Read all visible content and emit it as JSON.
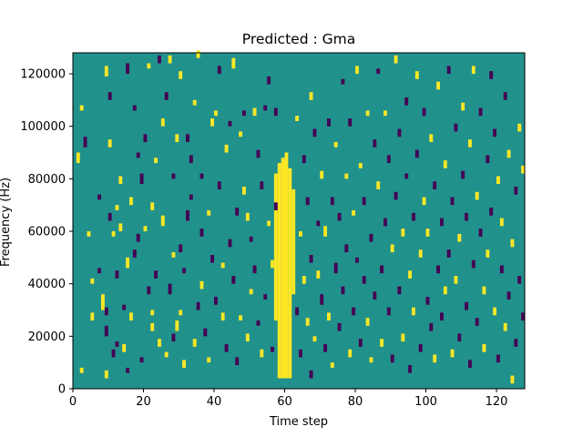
{
  "chart_data": {
    "type": "heatmap",
    "title": "Predicted : Gma",
    "xlabel": "Time step",
    "ylabel": "Frequency (Hz)",
    "xlim": [
      0,
      128
    ],
    "ylim": [
      0,
      128000
    ],
    "x_ticks": [
      0,
      20,
      40,
      60,
      80,
      100,
      120
    ],
    "y_ticks": [
      0,
      20000,
      40000,
      60000,
      80000,
      100000,
      120000
    ],
    "x_tick_labels": [
      "0",
      "20",
      "40",
      "60",
      "80",
      "100",
      "120"
    ],
    "y_tick_labels": [
      "0",
      "20000",
      "40000",
      "60000",
      "80000",
      "100000",
      "120000"
    ],
    "n_time_steps": 128,
    "n_freq_bins": 128,
    "bin_hz": 1000,
    "values_legend": {
      "low": -1,
      "neutral": 0,
      "high": 1
    },
    "colors": {
      "low": "#440154",
      "neutral": "#21918c",
      "high": "#fde725"
    },
    "band": {
      "value": 1,
      "cols": [
        {
          "t": 57,
          "f0": 26000,
          "f1": 82000
        },
        {
          "t": 58,
          "f0": 4000,
          "f1": 86000
        },
        {
          "t": 59,
          "f0": 4000,
          "f1": 88000
        },
        {
          "t": 60,
          "f0": 4000,
          "f1": 90000
        },
        {
          "t": 61,
          "f0": 4000,
          "f1": 84000
        },
        {
          "t": 62,
          "f0": 36000,
          "f1": 76000
        }
      ]
    },
    "cells": [
      [
        2,
        6000,
        1,
        2000
      ],
      [
        2,
        106000,
        1,
        2000
      ],
      [
        1,
        86000,
        1,
        4000
      ],
      [
        3,
        92000,
        -1,
        4000
      ],
      [
        4,
        58000,
        1,
        2000
      ],
      [
        5,
        26000,
        1,
        3000
      ],
      [
        5,
        40000,
        1,
        2000
      ],
      [
        7,
        44000,
        -1,
        2000
      ],
      [
        7,
        72000,
        -1,
        2000
      ],
      [
        8,
        30000,
        1,
        6000
      ],
      [
        9,
        4000,
        1,
        3000
      ],
      [
        9,
        119000,
        1,
        4000
      ],
      [
        9,
        28000,
        -1,
        3000
      ],
      [
        9,
        20000,
        -1,
        4000
      ],
      [
        10,
        110000,
        -1,
        3000
      ],
      [
        10,
        92000,
        1,
        3000
      ],
      [
        10,
        64000,
        -1,
        3000
      ],
      [
        11,
        12000,
        -1,
        3000
      ],
      [
        11,
        58000,
        1,
        2000
      ],
      [
        12,
        16000,
        -1,
        2000
      ],
      [
        12,
        42000,
        -1,
        3000
      ],
      [
        12,
        68000,
        1,
        2000
      ],
      [
        13,
        78000,
        1,
        3000
      ],
      [
        13,
        60000,
        1,
        3000
      ],
      [
        14,
        30000,
        -1,
        2000
      ],
      [
        14,
        14000,
        1,
        3000
      ],
      [
        15,
        6000,
        -1,
        2000
      ],
      [
        15,
        120000,
        -1,
        4000
      ],
      [
        15,
        46000,
        1,
        4000
      ],
      [
        16,
        26000,
        1,
        3000
      ],
      [
        16,
        70000,
        1,
        3000
      ],
      [
        17,
        106000,
        -1,
        2000
      ],
      [
        17,
        50000,
        -1,
        3000
      ],
      [
        18,
        88000,
        -1,
        2000
      ],
      [
        18,
        56000,
        -1,
        3000
      ],
      [
        19,
        10000,
        -1,
        2000
      ],
      [
        19,
        78000,
        -1,
        4000
      ],
      [
        20,
        94000,
        -1,
        3000
      ],
      [
        20,
        60000,
        1,
        2000
      ],
      [
        21,
        36000,
        -1,
        3000
      ],
      [
        21,
        122000,
        1,
        2000
      ],
      [
        22,
        22000,
        1,
        3000
      ],
      [
        22,
        68000,
        1,
        3000
      ],
      [
        22,
        28000,
        1,
        2000
      ],
      [
        23,
        86000,
        1,
        2000
      ],
      [
        23,
        42000,
        -1,
        3000
      ],
      [
        24,
        16000,
        1,
        3000
      ],
      [
        24,
        124000,
        -1,
        3000
      ],
      [
        25,
        62000,
        1,
        4000
      ],
      [
        25,
        100000,
        1,
        3000
      ],
      [
        26,
        110000,
        -1,
        3000
      ],
      [
        26,
        12000,
        1,
        2000
      ],
      [
        27,
        36000,
        -1,
        4000
      ],
      [
        27,
        124000,
        1,
        3000
      ],
      [
        28,
        18000,
        -1,
        3000
      ],
      [
        28,
        50000,
        1,
        2000
      ],
      [
        28,
        80000,
        -1,
        2000
      ],
      [
        29,
        94000,
        1,
        3000
      ],
      [
        29,
        22000,
        1,
        4000
      ],
      [
        30,
        118000,
        1,
        3000
      ],
      [
        30,
        52000,
        -1,
        3000
      ],
      [
        30,
        28000,
        1,
        2000
      ],
      [
        31,
        44000,
        -1,
        2000
      ],
      [
        31,
        8000,
        1,
        3000
      ],
      [
        32,
        64000,
        -1,
        4000
      ],
      [
        32,
        94000,
        -1,
        3000
      ],
      [
        33,
        86000,
        -1,
        3000
      ],
      [
        33,
        72000,
        -1,
        2000
      ],
      [
        34,
        108000,
        1,
        2000
      ],
      [
        34,
        16000,
        1,
        3000
      ],
      [
        35,
        30000,
        -1,
        3000
      ],
      [
        35,
        126000,
        1,
        3000
      ],
      [
        36,
        38000,
        1,
        3000
      ],
      [
        36,
        80000,
        -1,
        2000
      ],
      [
        36,
        58000,
        -1,
        3000
      ],
      [
        37,
        20000,
        -1,
        3000
      ],
      [
        38,
        10000,
        1,
        2000
      ],
      [
        38,
        66000,
        1,
        2000
      ],
      [
        39,
        100000,
        1,
        3000
      ],
      [
        39,
        48000,
        -1,
        3000
      ],
      [
        40,
        104000,
        1,
        2000
      ],
      [
        40,
        32000,
        -1,
        3000
      ],
      [
        41,
        120000,
        -1,
        3000
      ],
      [
        41,
        76000,
        -1,
        3000
      ],
      [
        42,
        26000,
        1,
        3000
      ],
      [
        42,
        46000,
        1,
        2000
      ],
      [
        43,
        14000,
        -1,
        3000
      ],
      [
        43,
        90000,
        1,
        3000
      ],
      [
        44,
        54000,
        -1,
        3000
      ],
      [
        44,
        100000,
        -1,
        2000
      ],
      [
        45,
        40000,
        -1,
        3000
      ],
      [
        45,
        122000,
        1,
        4000
      ],
      [
        46,
        66000,
        -1,
        3000
      ],
      [
        46,
        9000,
        -1,
        3000
      ],
      [
        47,
        96000,
        1,
        2000
      ],
      [
        47,
        26000,
        1,
        2000
      ],
      [
        48,
        74000,
        1,
        3000
      ],
      [
        48,
        104000,
        -1,
        2000
      ],
      [
        49,
        64000,
        1,
        3000
      ],
      [
        49,
        18000,
        1,
        3000
      ],
      [
        50,
        56000,
        -1,
        2000
      ],
      [
        50,
        36000,
        1,
        2000
      ],
      [
        51,
        104000,
        1,
        3000
      ],
      [
        51,
        44000,
        -1,
        3000
      ],
      [
        52,
        88000,
        -1,
        3000
      ],
      [
        52,
        24000,
        -1,
        2000
      ],
      [
        53,
        76000,
        -1,
        3000
      ],
      [
        53,
        12000,
        1,
        3000
      ],
      [
        54,
        106000,
        -1,
        2000
      ],
      [
        54,
        34000,
        -1,
        2000
      ],
      [
        55,
        62000,
        1,
        2000
      ],
      [
        55,
        116000,
        -1,
        3000
      ],
      [
        56,
        46000,
        1,
        3000
      ],
      [
        56,
        14000,
        -1,
        2000
      ],
      [
        57,
        68000,
        -1,
        3000
      ],
      [
        57,
        104000,
        -1,
        3000
      ],
      [
        63,
        28000,
        -1,
        3000
      ],
      [
        63,
        102000,
        1,
        2000
      ],
      [
        64,
        12000,
        -1,
        3000
      ],
      [
        64,
        58000,
        1,
        2000
      ],
      [
        65,
        40000,
        1,
        3000
      ],
      [
        65,
        86000,
        -1,
        3000
      ],
      [
        66,
        24000,
        1,
        3000
      ],
      [
        66,
        70000,
        -1,
        3000
      ],
      [
        67,
        4000,
        -1,
        3000
      ],
      [
        67,
        48000,
        -1,
        3000
      ],
      [
        67,
        110000,
        1,
        3000
      ],
      [
        68,
        18000,
        1,
        2000
      ],
      [
        68,
        96000,
        -1,
        3000
      ],
      [
        69,
        62000,
        -1,
        2000
      ],
      [
        69,
        42000,
        1,
        3000
      ],
      [
        70,
        32000,
        -1,
        4000
      ],
      [
        70,
        80000,
        1,
        3000
      ],
      [
        71,
        14000,
        -1,
        3000
      ],
      [
        71,
        58000,
        1,
        4000
      ],
      [
        72,
        100000,
        -1,
        3000
      ],
      [
        72,
        26000,
        1,
        3000
      ],
      [
        73,
        70000,
        -1,
        3000
      ],
      [
        73,
        8000,
        1,
        2000
      ],
      [
        74,
        44000,
        -1,
        4000
      ],
      [
        74,
        92000,
        1,
        2000
      ],
      [
        75,
        64000,
        -1,
        3000
      ],
      [
        75,
        22000,
        -1,
        3000
      ],
      [
        76,
        116000,
        -1,
        2000
      ],
      [
        76,
        36000,
        -1,
        3000
      ],
      [
        77,
        80000,
        1,
        2000
      ],
      [
        77,
        52000,
        -1,
        3000
      ],
      [
        78,
        12000,
        1,
        3000
      ],
      [
        78,
        100000,
        -1,
        3000
      ],
      [
        79,
        28000,
        -1,
        3000
      ],
      [
        79,
        66000,
        1,
        2000
      ],
      [
        80,
        48000,
        -1,
        2000
      ],
      [
        80,
        120000,
        1,
        3000
      ],
      [
        81,
        16000,
        -1,
        3000
      ],
      [
        81,
        84000,
        1,
        2000
      ],
      [
        82,
        40000,
        -1,
        3000
      ],
      [
        82,
        70000,
        -1,
        3000
      ],
      [
        83,
        104000,
        1,
        2000
      ],
      [
        83,
        24000,
        1,
        3000
      ],
      [
        84,
        56000,
        -1,
        3000
      ],
      [
        84,
        10000,
        1,
        2000
      ],
      [
        85,
        92000,
        -1,
        3000
      ],
      [
        85,
        34000,
        -1,
        3000
      ],
      [
        86,
        76000,
        1,
        3000
      ],
      [
        86,
        120000,
        -1,
        2000
      ],
      [
        87,
        44000,
        -1,
        3000
      ],
      [
        87,
        16000,
        1,
        3000
      ],
      [
        88,
        62000,
        -1,
        3000
      ],
      [
        88,
        104000,
        1,
        2000
      ],
      [
        89,
        28000,
        -1,
        3000
      ],
      [
        89,
        86000,
        -1,
        3000
      ],
      [
        90,
        10000,
        -1,
        3000
      ],
      [
        90,
        52000,
        1,
        3000
      ],
      [
        91,
        72000,
        -1,
        3000
      ],
      [
        91,
        124000,
        1,
        3000
      ],
      [
        92,
        36000,
        -1,
        3000
      ],
      [
        92,
        96000,
        -1,
        3000
      ],
      [
        93,
        18000,
        1,
        3000
      ],
      [
        93,
        58000,
        1,
        3000
      ],
      [
        94,
        80000,
        -1,
        2000
      ],
      [
        94,
        108000,
        -1,
        3000
      ],
      [
        95,
        42000,
        1,
        3000
      ],
      [
        95,
        6000,
        -1,
        3000
      ],
      [
        96,
        64000,
        -1,
        3000
      ],
      [
        96,
        28000,
        1,
        3000
      ],
      [
        97,
        88000,
        -1,
        3000
      ],
      [
        97,
        118000,
        1,
        3000
      ],
      [
        98,
        14000,
        -1,
        3000
      ],
      [
        98,
        50000,
        1,
        3000
      ],
      [
        99,
        70000,
        1,
        3000
      ],
      [
        99,
        104000,
        -1,
        3000
      ],
      [
        100,
        32000,
        -1,
        3000
      ],
      [
        100,
        58000,
        1,
        3000
      ],
      [
        101,
        22000,
        -1,
        3000
      ],
      [
        101,
        94000,
        1,
        3000
      ],
      [
        102,
        76000,
        -1,
        3000
      ],
      [
        102,
        10000,
        1,
        3000
      ],
      [
        103,
        44000,
        -1,
        3000
      ],
      [
        103,
        114000,
        1,
        3000
      ],
      [
        104,
        62000,
        -1,
        3000
      ],
      [
        104,
        26000,
        -1,
        3000
      ],
      [
        105,
        84000,
        1,
        3000
      ],
      [
        105,
        36000,
        1,
        3000
      ],
      [
        106,
        120000,
        -1,
        3000
      ],
      [
        106,
        50000,
        -1,
        3000
      ],
      [
        107,
        12000,
        1,
        3000
      ],
      [
        107,
        70000,
        -1,
        3000
      ],
      [
        108,
        98000,
        -1,
        3000
      ],
      [
        108,
        40000,
        1,
        3000
      ],
      [
        109,
        56000,
        1,
        3000
      ],
      [
        109,
        18000,
        -1,
        3000
      ],
      [
        110,
        80000,
        -1,
        3000
      ],
      [
        110,
        106000,
        1,
        3000
      ],
      [
        111,
        30000,
        -1,
        3000
      ],
      [
        111,
        64000,
        -1,
        3000
      ],
      [
        112,
        92000,
        1,
        3000
      ],
      [
        112,
        8000,
        -1,
        3000
      ],
      [
        113,
        46000,
        -1,
        3000
      ],
      [
        113,
        120000,
        1,
        3000
      ],
      [
        114,
        24000,
        -1,
        3000
      ],
      [
        114,
        72000,
        1,
        3000
      ],
      [
        115,
        58000,
        -1,
        3000
      ],
      [
        115,
        104000,
        -1,
        3000
      ],
      [
        116,
        36000,
        1,
        3000
      ],
      [
        116,
        14000,
        1,
        3000
      ],
      [
        117,
        86000,
        -1,
        3000
      ],
      [
        117,
        50000,
        1,
        3000
      ],
      [
        118,
        66000,
        -1,
        3000
      ],
      [
        118,
        118000,
        -1,
        3000
      ],
      [
        119,
        28000,
        1,
        3000
      ],
      [
        119,
        96000,
        -1,
        3000
      ],
      [
        120,
        10000,
        -1,
        3000
      ],
      [
        120,
        78000,
        1,
        3000
      ],
      [
        121,
        44000,
        -1,
        3000
      ],
      [
        121,
        62000,
        1,
        3000
      ],
      [
        122,
        22000,
        1,
        3000
      ],
      [
        122,
        110000,
        -1,
        3000
      ],
      [
        123,
        88000,
        1,
        3000
      ],
      [
        123,
        34000,
        -1,
        3000
      ],
      [
        124,
        54000,
        1,
        3000
      ],
      [
        124,
        2000,
        1,
        3000
      ],
      [
        125,
        74000,
        -1,
        3000
      ],
      [
        125,
        16000,
        -1,
        3000
      ],
      [
        126,
        98000,
        1,
        3000
      ],
      [
        126,
        40000,
        -1,
        3000
      ],
      [
        127,
        82000,
        1,
        3000
      ],
      [
        127,
        26000,
        -1,
        3000
      ]
    ]
  }
}
